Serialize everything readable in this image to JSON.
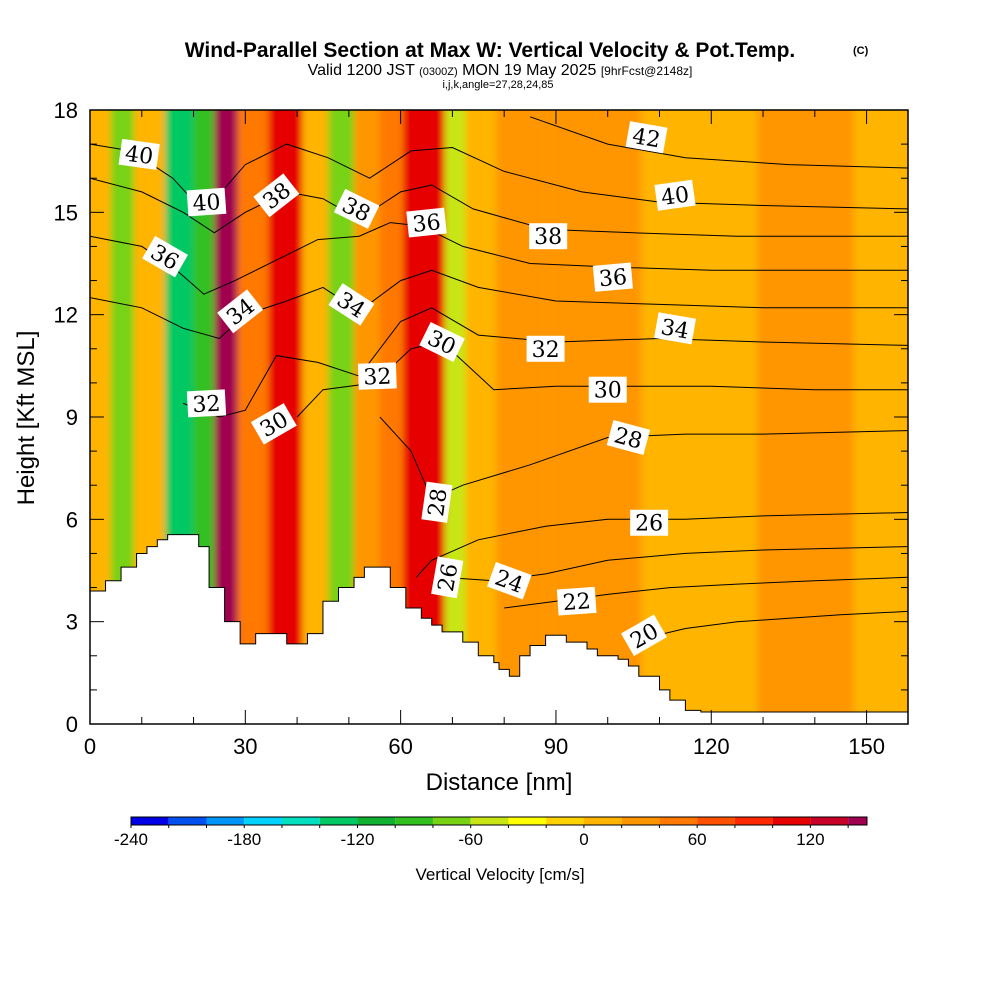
{
  "chart_data": {
    "type": "heatmap",
    "title": "Wind-Parallel Section at Max W: Vertical Velocity & Pot.Temp.",
    "title_mark": "(C)",
    "subtitle_main": "Valid 1200 JST",
    "subtitle_utc": "(0300Z)",
    "subtitle_date": "MON 19 May 2025",
    "subtitle_fcst": "[9hrFcst@2148z]",
    "subtitle_ijk": "i,j,k,angle=27,28,24,85",
    "xlabel": "Distance [nm]",
    "ylabel": "Height [Kft MSL]",
    "xlim": [
      0,
      158
    ],
    "ylim": [
      0,
      18
    ],
    "xticks": [
      "0",
      "30",
      "60",
      "90",
      "120",
      "150"
    ],
    "xtick_values": [
      0,
      30,
      60,
      90,
      120,
      150
    ],
    "yticks": [
      "0",
      "3",
      "6",
      "9",
      "12",
      "15",
      "18"
    ],
    "ytick_values": [
      0,
      3,
      6,
      9,
      12,
      15,
      18
    ],
    "colorbar": {
      "label": "Vertical Velocity [cm/s]",
      "min": -240,
      "max": 150,
      "step": 20,
      "tick_labels": [
        "-240",
        "-180",
        "-120",
        "-60",
        "0",
        "60",
        "120"
      ],
      "tick_values": [
        -240,
        -180,
        -120,
        -60,
        0,
        60,
        120
      ],
      "colors": [
        "#0000e6",
        "#0050f0",
        "#0096f8",
        "#00d2ff",
        "#00e0c0",
        "#00c864",
        "#10b030",
        "#32c020",
        "#78d214",
        "#c8e614",
        "#ffff00",
        "#ffd200",
        "#ffb400",
        "#ff9600",
        "#ff7800",
        "#ff5000",
        "#ff2800",
        "#e60000",
        "#c80028",
        "#a00050",
        "#78008c",
        "#5000a0"
      ]
    },
    "vertical_velocity_columns": [
      {
        "x": 2,
        "w": 8
      },
      {
        "x": 6,
        "w": -70
      },
      {
        "x": 11,
        "w": 15
      },
      {
        "x": 18,
        "w": -130
      },
      {
        "x": 22,
        "w": -90
      },
      {
        "x": 26,
        "w": 140
      },
      {
        "x": 31,
        "w": 40
      },
      {
        "x": 38,
        "w": 110
      },
      {
        "x": 44,
        "w": 0
      },
      {
        "x": 48,
        "w": -80
      },
      {
        "x": 54,
        "w": 30
      },
      {
        "x": 58,
        "w": 45
      },
      {
        "x": 63,
        "w": 100
      },
      {
        "x": 67,
        "w": 110
      },
      {
        "x": 70,
        "w": -60
      },
      {
        "x": 75,
        "w": 15
      },
      {
        "x": 82,
        "w": 25
      },
      {
        "x": 95,
        "w": 20
      },
      {
        "x": 118,
        "w": 5
      },
      {
        "x": 140,
        "w": 25
      },
      {
        "x": 155,
        "w": 15
      }
    ],
    "series": [
      {
        "name": "20",
        "x": [
          104,
          115,
          125,
          135,
          145,
          158
        ],
        "y": [
          2.4,
          2.8,
          3.0,
          3.1,
          3.2,
          3.3
        ]
      },
      {
        "name": "22",
        "x": [
          80,
          90,
          100,
          112,
          125,
          140,
          158
        ],
        "y": [
          3.4,
          3.6,
          3.8,
          4.0,
          4.1,
          4.2,
          4.3
        ]
      },
      {
        "name": "24",
        "x": [
          68,
          78,
          88,
          100,
          115,
          130,
          158
        ],
        "y": [
          4.3,
          4.2,
          4.4,
          4.8,
          5.0,
          5.1,
          5.2
        ]
      },
      {
        "name": "26",
        "x": [
          63,
          66,
          75,
          88,
          100,
          115,
          130,
          158
        ],
        "y": [
          4.3,
          4.8,
          5.4,
          5.8,
          6.0,
          6.0,
          6.1,
          6.2
        ]
      },
      {
        "name": "28",
        "x": [
          56,
          62,
          66,
          72,
          85,
          100,
          115,
          130,
          158
        ],
        "y": [
          9.0,
          8.0,
          6.6,
          7.0,
          7.6,
          8.4,
          8.5,
          8.5,
          8.6
        ]
      },
      {
        "name": "30",
        "x": [
          40,
          45,
          55,
          62,
          68,
          78,
          90,
          105,
          120,
          140,
          158
        ],
        "y": [
          9.0,
          9.8,
          10.0,
          11.0,
          11.2,
          9.8,
          9.9,
          9.9,
          9.9,
          9.8,
          9.8
        ]
      },
      {
        "name": "32",
        "x": [
          18,
          25,
          30,
          36,
          44,
          52,
          60,
          66,
          75,
          90,
          110,
          130,
          158
        ],
        "y": [
          9.4,
          9.0,
          9.2,
          10.8,
          10.6,
          10.2,
          11.8,
          12.2,
          11.4,
          11.2,
          11.3,
          11.2,
          11.1
        ]
      },
      {
        "name": "34",
        "x": [
          0,
          10,
          18,
          25,
          30,
          38,
          45,
          52,
          60,
          66,
          75,
          90,
          110,
          130,
          158
        ],
        "y": [
          12.5,
          12.2,
          11.6,
          11.3,
          12.0,
          12.4,
          12.8,
          12.1,
          13.0,
          13.3,
          12.8,
          12.4,
          12.3,
          12.2,
          12.2
        ]
      },
      {
        "name": "36",
        "x": [
          0,
          10,
          16,
          22,
          28,
          36,
          44,
          52,
          58,
          64,
          72,
          85,
          100,
          120,
          140,
          158
        ],
        "y": [
          14.3,
          14.0,
          13.4,
          12.6,
          13.0,
          13.6,
          14.2,
          14.3,
          14.7,
          14.6,
          14.0,
          13.5,
          13.4,
          13.3,
          13.3,
          13.3
        ]
      },
      {
        "name": "38",
        "x": [
          0,
          10,
          18,
          24,
          30,
          38,
          45,
          52,
          60,
          66,
          74,
          88,
          105,
          125,
          158
        ],
        "y": [
          16.0,
          15.6,
          15.0,
          14.4,
          15.0,
          15.6,
          15.4,
          14.8,
          15.6,
          15.8,
          15.1,
          14.5,
          14.4,
          14.3,
          14.3
        ]
      },
      {
        "name": "40",
        "x": [
          0,
          8,
          16,
          22,
          30,
          38,
          46,
          54,
          62,
          70,
          80,
          95,
          110,
          130,
          158
        ],
        "y": [
          17.0,
          16.8,
          16.0,
          15.0,
          16.4,
          17.0,
          16.6,
          16.0,
          16.8,
          16.9,
          16.2,
          15.6,
          15.3,
          15.2,
          15.1
        ]
      },
      {
        "name": "42",
        "x": [
          85,
          100,
          115,
          135,
          158
        ],
        "y": [
          17.8,
          17.0,
          16.6,
          16.4,
          16.3
        ]
      }
    ],
    "terrain_kft": [
      {
        "x": 0,
        "h": 3.9
      },
      {
        "x": 3,
        "h": 4.2
      },
      {
        "x": 6,
        "h": 4.6
      },
      {
        "x": 9,
        "h": 5.0
      },
      {
        "x": 11,
        "h": 5.2
      },
      {
        "x": 13,
        "h": 5.4
      },
      {
        "x": 15,
        "h": 5.55
      },
      {
        "x": 21,
        "h": 5.2
      },
      {
        "x": 23,
        "h": 4.0
      },
      {
        "x": 26,
        "h": 3.0
      },
      {
        "x": 29,
        "h": 2.35
      },
      {
        "x": 32,
        "h": 2.65
      },
      {
        "x": 38,
        "h": 2.35
      },
      {
        "x": 42,
        "h": 2.65
      },
      {
        "x": 45,
        "h": 3.6
      },
      {
        "x": 48,
        "h": 4.0
      },
      {
        "x": 51,
        "h": 4.3
      },
      {
        "x": 53,
        "h": 4.6
      },
      {
        "x": 58,
        "h": 4.0
      },
      {
        "x": 61,
        "h": 3.4
      },
      {
        "x": 64,
        "h": 3.1
      },
      {
        "x": 66,
        "h": 2.9
      },
      {
        "x": 68,
        "h": 2.7
      },
      {
        "x": 72,
        "h": 2.4
      },
      {
        "x": 75,
        "h": 2.0
      },
      {
        "x": 78,
        "h": 1.8
      },
      {
        "x": 79,
        "h": 1.6
      },
      {
        "x": 81,
        "h": 1.4
      },
      {
        "x": 83,
        "h": 2.0
      },
      {
        "x": 85,
        "h": 2.3
      },
      {
        "x": 88,
        "h": 2.6
      },
      {
        "x": 92,
        "h": 2.4
      },
      {
        "x": 96,
        "h": 2.2
      },
      {
        "x": 98,
        "h": 2.0
      },
      {
        "x": 102,
        "h": 1.9
      },
      {
        "x": 104,
        "h": 1.7
      },
      {
        "x": 106,
        "h": 1.4
      },
      {
        "x": 110,
        "h": 1.0
      },
      {
        "x": 112,
        "h": 0.7
      },
      {
        "x": 115,
        "h": 0.4
      },
      {
        "x": 118,
        "h": 0.35
      },
      {
        "x": 158,
        "h": 0.35
      }
    ],
    "contour_labels": [
      {
        "text": "40",
        "x": 9.5,
        "y": 16.7,
        "angle": 8
      },
      {
        "text": "40",
        "x": 22.5,
        "y": 15.3,
        "angle": -4
      },
      {
        "text": "36",
        "x": 14.5,
        "y": 13.7,
        "angle": 30
      },
      {
        "text": "38",
        "x": 36,
        "y": 15.5,
        "angle": -38
      },
      {
        "text": "34",
        "x": 29,
        "y": 12.1,
        "angle": -38
      },
      {
        "text": "32",
        "x": 22.5,
        "y": 9.4,
        "angle": -3
      },
      {
        "text": "30",
        "x": 35.5,
        "y": 8.8,
        "angle": -30
      },
      {
        "text": "38",
        "x": 51.5,
        "y": 15.1,
        "angle": 26
      },
      {
        "text": "34",
        "x": 50.5,
        "y": 12.3,
        "angle": 33
      },
      {
        "text": "36",
        "x": 65,
        "y": 14.7,
        "angle": -6
      },
      {
        "text": "32",
        "x": 55.5,
        "y": 10.2,
        "angle": -2
      },
      {
        "text": "30",
        "x": 68,
        "y": 11.2,
        "angle": 26
      },
      {
        "text": "28",
        "x": 67,
        "y": 6.5,
        "angle": -82
      },
      {
        "text": "26",
        "x": 69,
        "y": 4.3,
        "angle": -80
      },
      {
        "text": "24",
        "x": 81,
        "y": 4.2,
        "angle": 20
      },
      {
        "text": "22",
        "x": 94,
        "y": 3.6,
        "angle": -4
      },
      {
        "text": "20",
        "x": 107,
        "y": 2.6,
        "angle": -30
      },
      {
        "text": "42",
        "x": 107.5,
        "y": 17.2,
        "angle": 10
      },
      {
        "text": "40",
        "x": 113,
        "y": 15.5,
        "angle": -8
      },
      {
        "text": "38",
        "x": 88.5,
        "y": 14.3,
        "angle": 0
      },
      {
        "text": "36",
        "x": 101,
        "y": 13.1,
        "angle": -5
      },
      {
        "text": "34",
        "x": 113,
        "y": 11.6,
        "angle": 10
      },
      {
        "text": "32",
        "x": 88,
        "y": 11.0,
        "angle": 0
      },
      {
        "text": "30",
        "x": 100,
        "y": 9.8,
        "angle": 0
      },
      {
        "text": "28",
        "x": 104,
        "y": 8.4,
        "angle": 15
      },
      {
        "text": "26",
        "x": 108,
        "y": 5.9,
        "angle": 0
      }
    ]
  }
}
